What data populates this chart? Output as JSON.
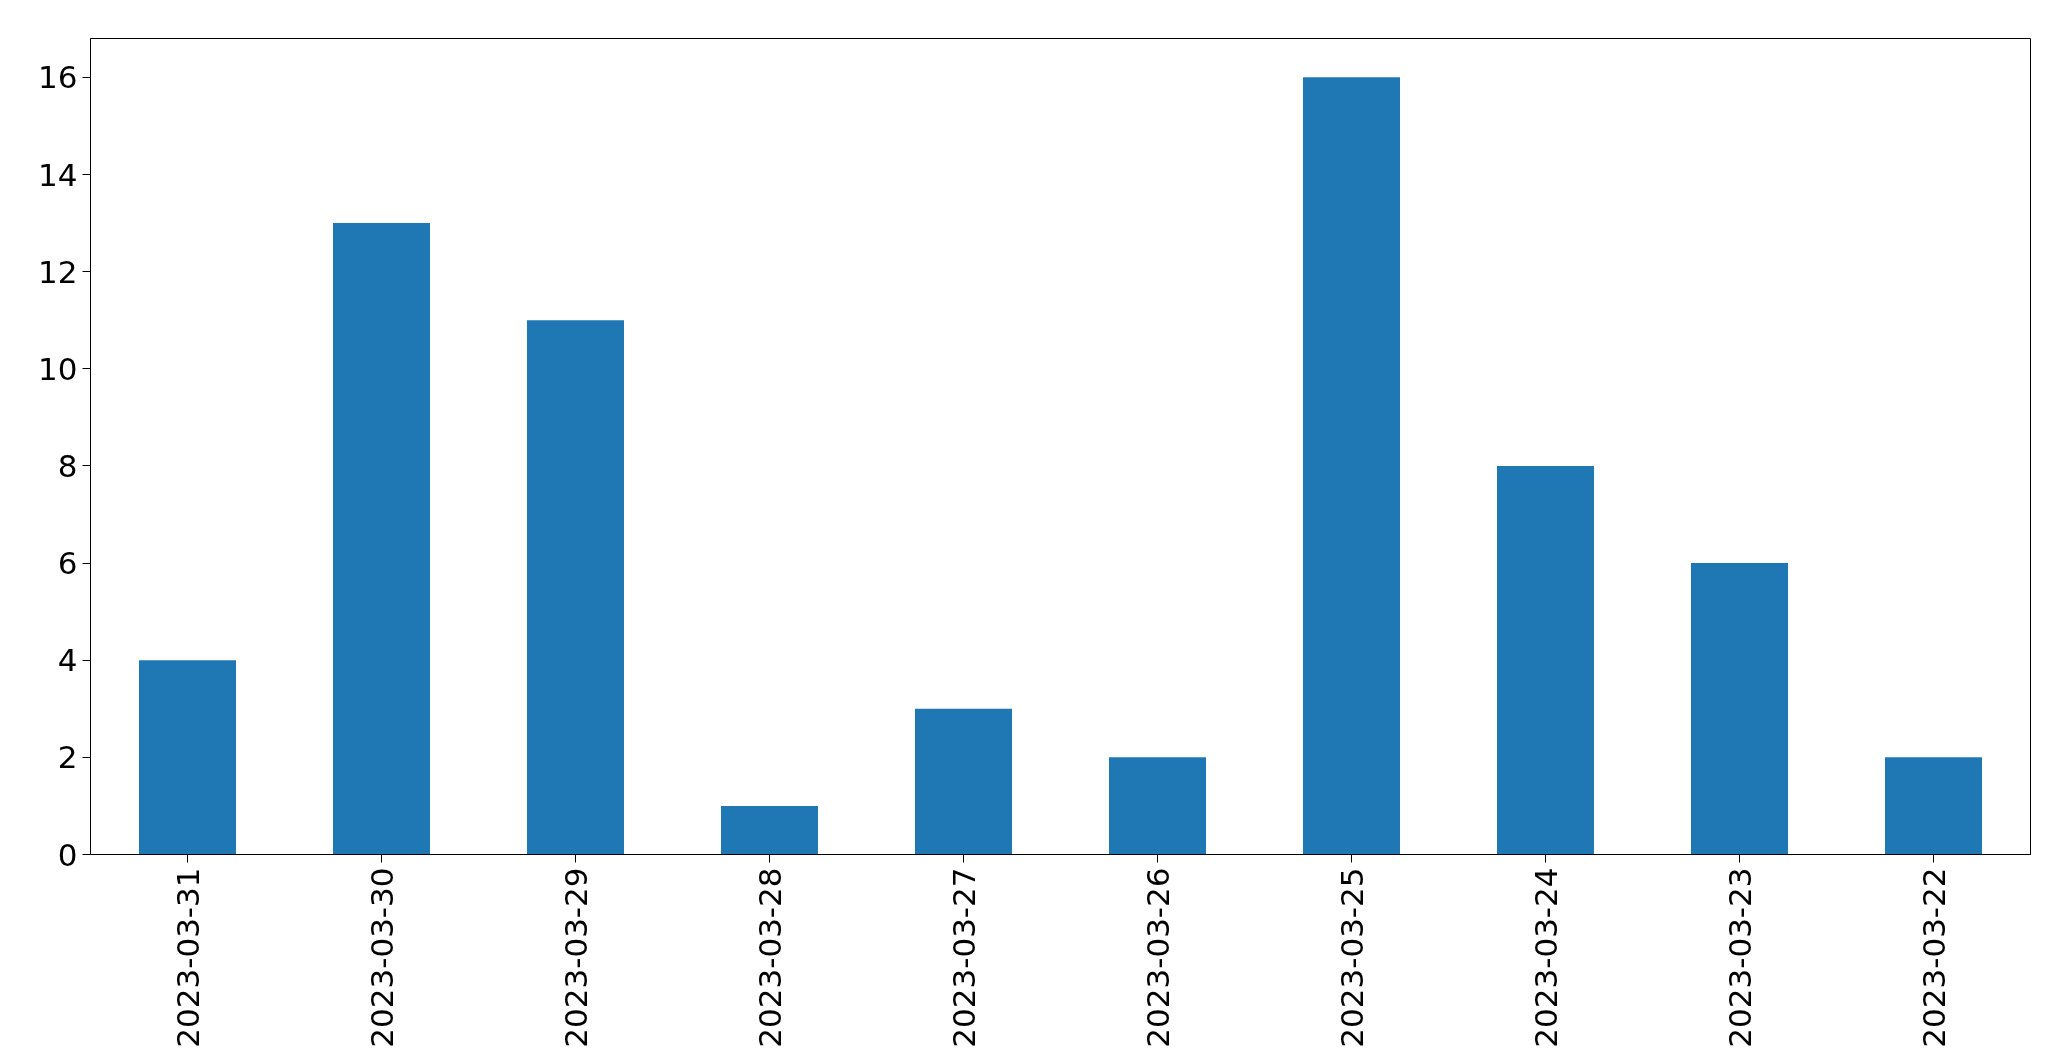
{
  "chart_data": {
    "type": "bar",
    "categories": [
      "2023-03-31",
      "2023-03-30",
      "2023-03-29",
      "2023-03-28",
      "2023-03-27",
      "2023-03-26",
      "2023-03-25",
      "2023-03-24",
      "2023-03-23",
      "2023-03-22"
    ],
    "values": [
      4,
      13,
      11,
      1,
      3,
      2,
      16,
      8,
      6,
      2
    ],
    "color": "#1f77b4",
    "ylim": [
      0,
      16.8
    ],
    "yticks": [
      0,
      2,
      4,
      6,
      8,
      10,
      12,
      14,
      16
    ],
    "grid": false
  }
}
